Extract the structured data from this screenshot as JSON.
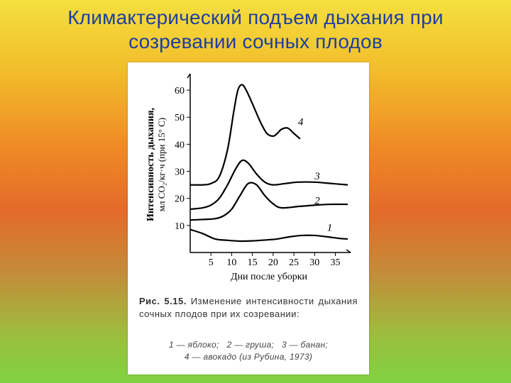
{
  "slide": {
    "title": "Климактерический подъем дыхания при созревании сочных плодов",
    "background_gradient": [
      "#f5df3f",
      "#f2be2b",
      "#ef8b25",
      "#e46a2a",
      "#c28e3a",
      "#9bbf3e",
      "#7fd241"
    ]
  },
  "figure": {
    "panel_bg": "#ffffff",
    "caption_prefix": "Рис. 5.15.",
    "caption_text": "Изменение интенсивности дыхания сочных плодов при их созревании:",
    "legend_items": [
      {
        "n": "1",
        "label": "яблоко"
      },
      {
        "n": "2",
        "label": "груша"
      },
      {
        "n": "3",
        "label": "банан"
      },
      {
        "n": "4",
        "label": "авокадо (из Рубина, 1973)"
      }
    ]
  },
  "chart": {
    "type": "line",
    "xlabel": "Дни после уборки",
    "ylabel_line1": "Интенсивность дыхания,",
    "ylabel_line2": "мл CO₂/кг·ч (при 15° C)",
    "xlim": [
      0,
      38
    ],
    "ylim": [
      0,
      65
    ],
    "xticks": [
      5,
      10,
      15,
      20,
      25,
      30,
      35
    ],
    "yticks": [
      10,
      20,
      30,
      40,
      50,
      60
    ],
    "axis_color": "#000000",
    "line_color": "#000000",
    "line_width": 2.2,
    "tick_fontsize": 14,
    "label_fontsize": 14,
    "series": [
      {
        "id": "1",
        "label_pos": {
          "x": 33,
          "y": 8
        },
        "points": [
          [
            0,
            8.5
          ],
          [
            3,
            7
          ],
          [
            6,
            5
          ],
          [
            9,
            4.5
          ],
          [
            12,
            4.2
          ],
          [
            15,
            4.3
          ],
          [
            18,
            4.6
          ],
          [
            21,
            5
          ],
          [
            24,
            5.8
          ],
          [
            27,
            6.3
          ],
          [
            30,
            6.3
          ],
          [
            33,
            5.8
          ],
          [
            36,
            5.2
          ],
          [
            38,
            5
          ]
        ]
      },
      {
        "id": "2",
        "label_pos": {
          "x": 30,
          "y": 18
        },
        "points": [
          [
            0,
            12
          ],
          [
            3,
            12.2
          ],
          [
            6,
            12.5
          ],
          [
            8,
            13.5
          ],
          [
            10,
            16
          ],
          [
            12,
            21
          ],
          [
            14,
            25.5
          ],
          [
            16,
            25
          ],
          [
            18,
            21
          ],
          [
            20,
            18
          ],
          [
            22,
            16.5
          ],
          [
            26,
            17
          ],
          [
            30,
            17.5
          ],
          [
            34,
            17.8
          ],
          [
            38,
            17.8
          ]
        ]
      },
      {
        "id": "3",
        "label_pos": {
          "x": 30,
          "y": 27
        },
        "points": [
          [
            0,
            16
          ],
          [
            3,
            16.5
          ],
          [
            5,
            17.5
          ],
          [
            7,
            20
          ],
          [
            9,
            25
          ],
          [
            11,
            31
          ],
          [
            12.5,
            34
          ],
          [
            14,
            33
          ],
          [
            16,
            29
          ],
          [
            18,
            26
          ],
          [
            20,
            25
          ],
          [
            23,
            25.5
          ],
          [
            26,
            26
          ],
          [
            30,
            26
          ],
          [
            34,
            25.5
          ],
          [
            38,
            25
          ]
        ]
      },
      {
        "id": "4",
        "label_pos": {
          "x": 26,
          "y": 47
        },
        "points": [
          [
            0,
            25
          ],
          [
            3,
            25
          ],
          [
            5,
            25.5
          ],
          [
            7,
            28
          ],
          [
            9,
            38
          ],
          [
            10.5,
            52
          ],
          [
            11.5,
            60
          ],
          [
            12.5,
            62
          ],
          [
            13.5,
            60
          ],
          [
            15,
            55
          ],
          [
            17,
            48
          ],
          [
            18.5,
            44
          ],
          [
            20,
            43
          ],
          [
            21,
            44
          ],
          [
            22,
            45.5
          ],
          [
            23.5,
            46
          ],
          [
            25,
            44
          ],
          [
            26.5,
            42
          ]
        ]
      }
    ]
  }
}
